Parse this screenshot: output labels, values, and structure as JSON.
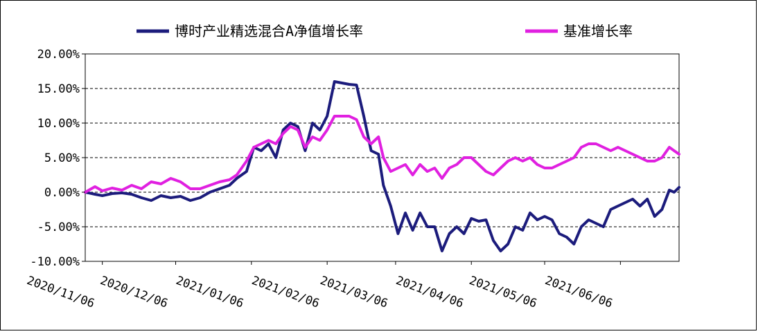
{
  "chart_data": {
    "type": "line",
    "legend_position": "top",
    "grid": true,
    "ylim": [
      -10,
      20
    ],
    "y_ticks": [
      "20.00%",
      "15.00%",
      "10.00%",
      "5.00%",
      "0.00%",
      "-5.00%",
      "-10.00%"
    ],
    "x_ticks": [
      "2020/11/06",
      "2020/12/06",
      "2021/01/06",
      "2021/02/06",
      "2021/03/06",
      "2021/04/06",
      "2021/05/06",
      "2021/06/06"
    ],
    "xlim": [
      "2020/10/30",
      "2021/06/30"
    ],
    "series": [
      {
        "name": "博时产业精选混合A净值增长率",
        "color": "#1c1c7c",
        "points": [
          [
            "2020/10/30",
            0.0
          ],
          [
            "2020/11/03",
            -0.3
          ],
          [
            "2020/11/06",
            -0.5
          ],
          [
            "2020/11/10",
            -0.2
          ],
          [
            "2020/11/14",
            -0.1
          ],
          [
            "2020/11/18",
            -0.3
          ],
          [
            "2020/11/22",
            -0.8
          ],
          [
            "2020/11/26",
            -1.2
          ],
          [
            "2020/11/30",
            -0.5
          ],
          [
            "2020/12/04",
            -0.8
          ],
          [
            "2020/12/08",
            -0.6
          ],
          [
            "2020/12/12",
            -1.2
          ],
          [
            "2020/12/16",
            -0.8
          ],
          [
            "2020/12/20",
            0.0
          ],
          [
            "2020/12/24",
            0.5
          ],
          [
            "2020/12/28",
            1.0
          ],
          [
            "2020/12/31",
            2.0
          ],
          [
            "2021/01/04",
            3.0
          ],
          [
            "2021/01/07",
            6.5
          ],
          [
            "2021/01/10",
            6.0
          ],
          [
            "2021/01/13",
            7.0
          ],
          [
            "2021/01/16",
            5.0
          ],
          [
            "2021/01/19",
            9.0
          ],
          [
            "2021/01/22",
            10.0
          ],
          [
            "2021/01/25",
            9.5
          ],
          [
            "2021/01/28",
            6.0
          ],
          [
            "2021/01/31",
            10.0
          ],
          [
            "2021/02/03",
            9.0
          ],
          [
            "2021/02/06",
            11.0
          ],
          [
            "2021/02/09",
            16.0
          ],
          [
            "2021/02/12",
            15.8
          ],
          [
            "2021/02/15",
            15.6
          ],
          [
            "2021/02/18",
            15.5
          ],
          [
            "2021/02/21",
            11.0
          ],
          [
            "2021/02/24",
            6.0
          ],
          [
            "2021/02/27",
            5.5
          ],
          [
            "2021/03/01",
            1.0
          ],
          [
            "2021/03/04",
            -2.0
          ],
          [
            "2021/03/07",
            -6.0
          ],
          [
            "2021/03/10",
            -3.0
          ],
          [
            "2021/03/13",
            -5.5
          ],
          [
            "2021/03/16",
            -3.0
          ],
          [
            "2021/03/19",
            -5.0
          ],
          [
            "2021/03/22",
            -5.0
          ],
          [
            "2021/03/25",
            -8.5
          ],
          [
            "2021/03/28",
            -6.0
          ],
          [
            "2021/03/31",
            -5.0
          ],
          [
            "2021/04/03",
            -6.0
          ],
          [
            "2021/04/06",
            -3.8
          ],
          [
            "2021/04/09",
            -4.2
          ],
          [
            "2021/04/12",
            -4.0
          ],
          [
            "2021/04/15",
            -7.0
          ],
          [
            "2021/04/18",
            -8.5
          ],
          [
            "2021/04/21",
            -7.5
          ],
          [
            "2021/04/24",
            -5.0
          ],
          [
            "2021/04/27",
            -5.5
          ],
          [
            "2021/04/30",
            -3.0
          ],
          [
            "2021/05/03",
            -4.0
          ],
          [
            "2021/05/06",
            -3.5
          ],
          [
            "2021/05/09",
            -4.0
          ],
          [
            "2021/05/12",
            -6.0
          ],
          [
            "2021/05/15",
            -6.5
          ],
          [
            "2021/05/18",
            -7.5
          ],
          [
            "2021/05/21",
            -5.0
          ],
          [
            "2021/05/24",
            -4.0
          ],
          [
            "2021/05/27",
            -4.5
          ],
          [
            "2021/05/30",
            -5.0
          ],
          [
            "2021/06/02",
            -2.5
          ],
          [
            "2021/06/05",
            -2.0
          ],
          [
            "2021/06/08",
            -1.5
          ],
          [
            "2021/06/11",
            -1.0
          ],
          [
            "2021/06/14",
            -2.0
          ],
          [
            "2021/06/17",
            -1.0
          ],
          [
            "2021/06/20",
            -3.5
          ],
          [
            "2021/06/23",
            -2.5
          ],
          [
            "2021/06/26",
            0.3
          ],
          [
            "2021/06/28",
            0.0
          ],
          [
            "2021/06/30",
            0.7
          ]
        ]
      },
      {
        "name": "基准增长率",
        "color": "#e020e0",
        "points": [
          [
            "2020/10/30",
            0.0
          ],
          [
            "2020/11/03",
            0.8
          ],
          [
            "2020/11/06",
            0.2
          ],
          [
            "2020/11/10",
            0.6
          ],
          [
            "2020/11/14",
            0.3
          ],
          [
            "2020/11/18",
            1.0
          ],
          [
            "2020/11/22",
            0.5
          ],
          [
            "2020/11/26",
            1.5
          ],
          [
            "2020/11/30",
            1.2
          ],
          [
            "2020/12/04",
            2.0
          ],
          [
            "2020/12/08",
            1.5
          ],
          [
            "2020/12/12",
            0.5
          ],
          [
            "2020/12/16",
            0.5
          ],
          [
            "2020/12/20",
            1.0
          ],
          [
            "2020/12/24",
            1.5
          ],
          [
            "2020/12/28",
            1.8
          ],
          [
            "2020/12/31",
            2.5
          ],
          [
            "2021/01/04",
            4.5
          ],
          [
            "2021/01/07",
            6.5
          ],
          [
            "2021/01/10",
            7.0
          ],
          [
            "2021/01/13",
            7.5
          ],
          [
            "2021/01/16",
            7.0
          ],
          [
            "2021/01/19",
            8.5
          ],
          [
            "2021/01/22",
            9.5
          ],
          [
            "2021/01/25",
            9.0
          ],
          [
            "2021/01/28",
            6.5
          ],
          [
            "2021/01/31",
            8.0
          ],
          [
            "2021/02/03",
            7.5
          ],
          [
            "2021/02/06",
            9.0
          ],
          [
            "2021/02/09",
            11.0
          ],
          [
            "2021/02/12",
            11.0
          ],
          [
            "2021/02/15",
            11.0
          ],
          [
            "2021/02/18",
            10.5
          ],
          [
            "2021/02/21",
            8.0
          ],
          [
            "2021/02/24",
            7.0
          ],
          [
            "2021/02/27",
            8.0
          ],
          [
            "2021/03/01",
            5.0
          ],
          [
            "2021/03/04",
            3.0
          ],
          [
            "2021/03/07",
            3.5
          ],
          [
            "2021/03/10",
            4.0
          ],
          [
            "2021/03/13",
            2.5
          ],
          [
            "2021/03/16",
            4.0
          ],
          [
            "2021/03/19",
            3.0
          ],
          [
            "2021/03/22",
            3.5
          ],
          [
            "2021/03/25",
            2.0
          ],
          [
            "2021/03/28",
            3.5
          ],
          [
            "2021/03/31",
            4.0
          ],
          [
            "2021/04/03",
            5.0
          ],
          [
            "2021/04/06",
            5.0
          ],
          [
            "2021/04/09",
            4.0
          ],
          [
            "2021/04/12",
            3.0
          ],
          [
            "2021/04/15",
            2.5
          ],
          [
            "2021/04/18",
            3.5
          ],
          [
            "2021/04/21",
            4.5
          ],
          [
            "2021/04/24",
            5.0
          ],
          [
            "2021/04/27",
            4.5
          ],
          [
            "2021/04/30",
            5.0
          ],
          [
            "2021/05/03",
            4.0
          ],
          [
            "2021/05/06",
            3.5
          ],
          [
            "2021/05/09",
            3.5
          ],
          [
            "2021/05/12",
            4.0
          ],
          [
            "2021/05/15",
            4.5
          ],
          [
            "2021/05/18",
            5.0
          ],
          [
            "2021/05/21",
            6.5
          ],
          [
            "2021/05/24",
            7.0
          ],
          [
            "2021/05/27",
            7.0
          ],
          [
            "2021/05/30",
            6.5
          ],
          [
            "2021/06/02",
            6.0
          ],
          [
            "2021/06/05",
            6.5
          ],
          [
            "2021/06/08",
            6.0
          ],
          [
            "2021/06/11",
            5.5
          ],
          [
            "2021/06/14",
            5.0
          ],
          [
            "2021/06/17",
            4.5
          ],
          [
            "2021/06/20",
            4.5
          ],
          [
            "2021/06/23",
            5.0
          ],
          [
            "2021/06/26",
            6.5
          ],
          [
            "2021/06/28",
            6.0
          ],
          [
            "2021/06/30",
            5.5
          ]
        ]
      }
    ]
  }
}
